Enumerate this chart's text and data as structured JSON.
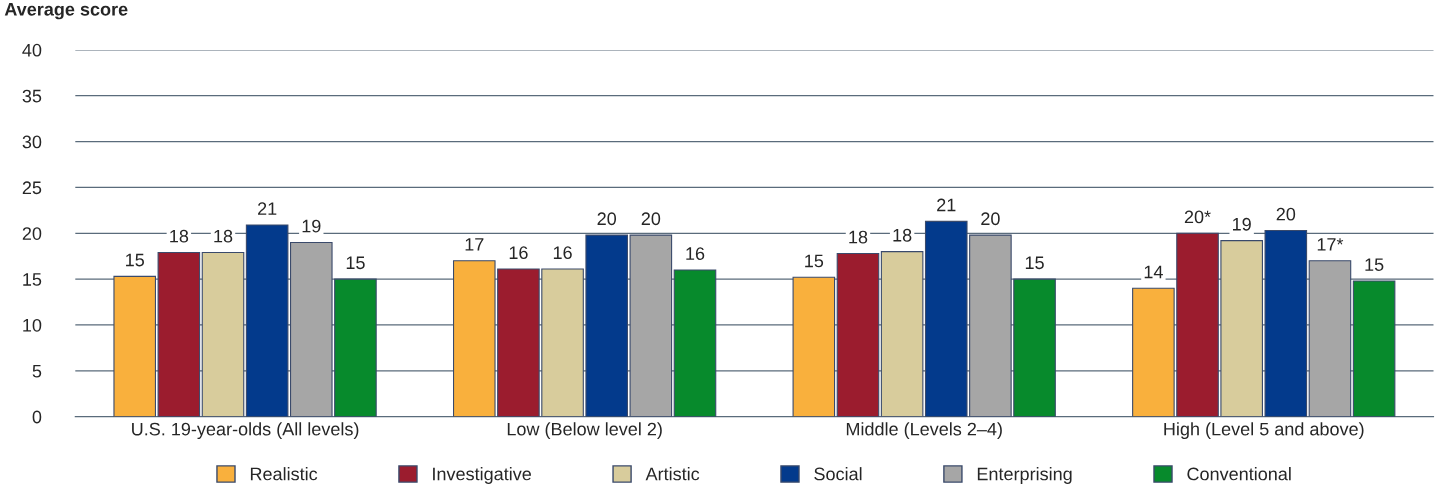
{
  "chart_data": {
    "type": "bar",
    "ylabel": "Average score",
    "categories": [
      "U.S. 19-year-olds (All levels)",
      "Low (Below level 2)",
      "Middle (Levels 2–4)",
      "High (Level 5 and above)"
    ],
    "series": [
      {
        "name": "Realistic",
        "color": "#f9b03d",
        "values": [
          15.3,
          17.0,
          15.2,
          14.0
        ],
        "value_labels": [
          "15",
          "17",
          "15",
          "14"
        ]
      },
      {
        "name": "Investigative",
        "color": "#9b1c2e",
        "values": [
          17.9,
          16.1,
          17.8,
          20
        ],
        "value_labels": [
          "18",
          "16",
          "18",
          "20*"
        ]
      },
      {
        "name": "Artistic",
        "color": "#d8cc9c",
        "values": [
          17.9,
          16.1,
          18.0,
          19.2
        ],
        "value_labels": [
          "18",
          "16",
          "18",
          "19"
        ]
      },
      {
        "name": "Social",
        "color": "#033a8c",
        "values": [
          20.9,
          19.8,
          21.3,
          20.3
        ],
        "value_labels": [
          "21",
          "20",
          "21",
          "20"
        ]
      },
      {
        "name": "Enterprising",
        "color": "#a6a6a6",
        "values": [
          19,
          19.8,
          19.8,
          17
        ],
        "value_labels": [
          "19",
          "20",
          "20",
          "17*"
        ]
      },
      {
        "name": "Conventional",
        "color": "#078a2c",
        "values": [
          15,
          16.0,
          15,
          14.8
        ],
        "value_labels": [
          "15",
          "16",
          "15",
          "15"
        ]
      }
    ],
    "ylim": [
      0,
      40
    ],
    "yticks": [
      0,
      5,
      10,
      15,
      20,
      25,
      30,
      35,
      40
    ],
    "grid": "y",
    "legend": "bottom"
  }
}
